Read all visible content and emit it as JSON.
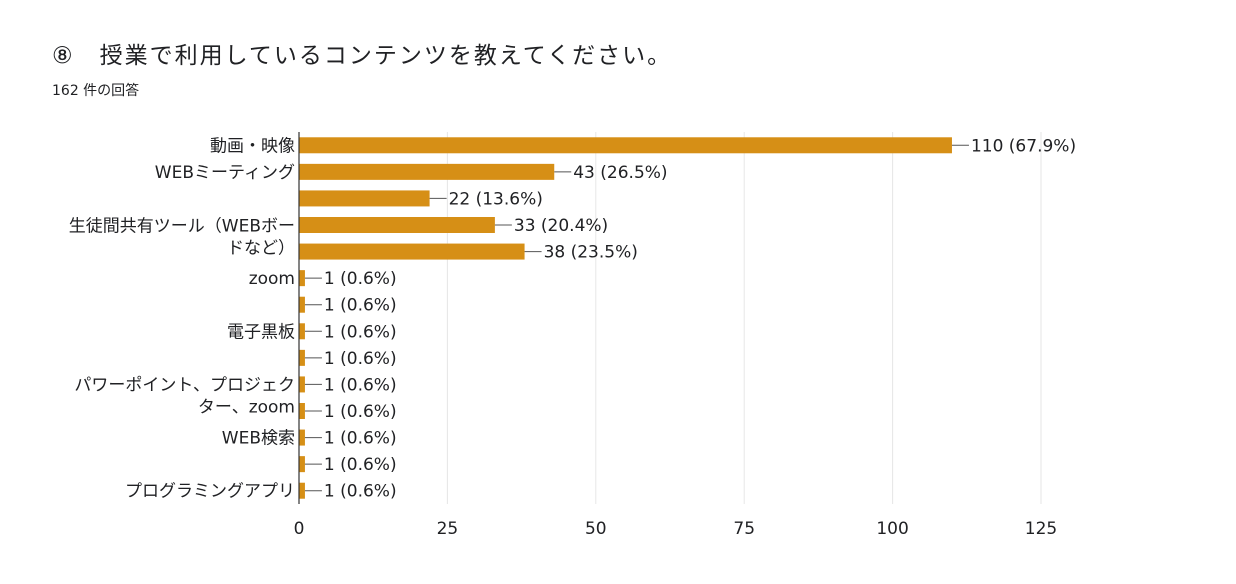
{
  "question": {
    "title": "⑧　授業で利用しているコンテンツを教えてください。",
    "response_count": "162 件の回答"
  },
  "colors": {
    "bar": "#d68f16",
    "grid": "#e6e6e6",
    "axis": "#333333",
    "text": "#202124"
  },
  "chart_data": {
    "type": "bar",
    "orientation": "horizontal",
    "categories": [
      "動画・映像",
      "WEBミーティング",
      "",
      "生徒間共有ツール（WEBボードなど）",
      "",
      "zoom",
      "",
      "電子黒板",
      "",
      "パワーポイント、プロジェクター、zoom",
      "",
      "WEB検索",
      "",
      "プログラミングアプリ"
    ],
    "category_label_lines": [
      [
        "動画・映像"
      ],
      [
        "WEBミーティング"
      ],
      [],
      [
        "生徒間共有ツール（WEBボー",
        "ドなど）"
      ],
      [],
      [
        "zoom"
      ],
      [],
      [
        "電子黒板"
      ],
      [],
      [
        "パワーポイント、プロジェク",
        "ター、zoom"
      ],
      [],
      [
        "WEB検索"
      ],
      [],
      [
        "プログラミングアプリ"
      ]
    ],
    "values": [
      110,
      43,
      22,
      33,
      38,
      1,
      1,
      1,
      1,
      1,
      1,
      1,
      1,
      1
    ],
    "data_labels": [
      "110 (67.9%)",
      "43 (26.5%)",
      "22 (13.6%)",
      "33 (20.4%)",
      "38 (23.5%)",
      "1 (0.6%)",
      "1 (0.6%)",
      "1 (0.6%)",
      "1 (0.6%)",
      "1 (0.6%)",
      "1 (0.6%)",
      "1 (0.6%)",
      "1 (0.6%)",
      "1 (0.6%)"
    ],
    "xlim": [
      0,
      125
    ],
    "xticks": [
      0,
      25,
      50,
      75,
      100,
      125
    ],
    "grid": true,
    "title": "",
    "xlabel": "",
    "ylabel": ""
  }
}
